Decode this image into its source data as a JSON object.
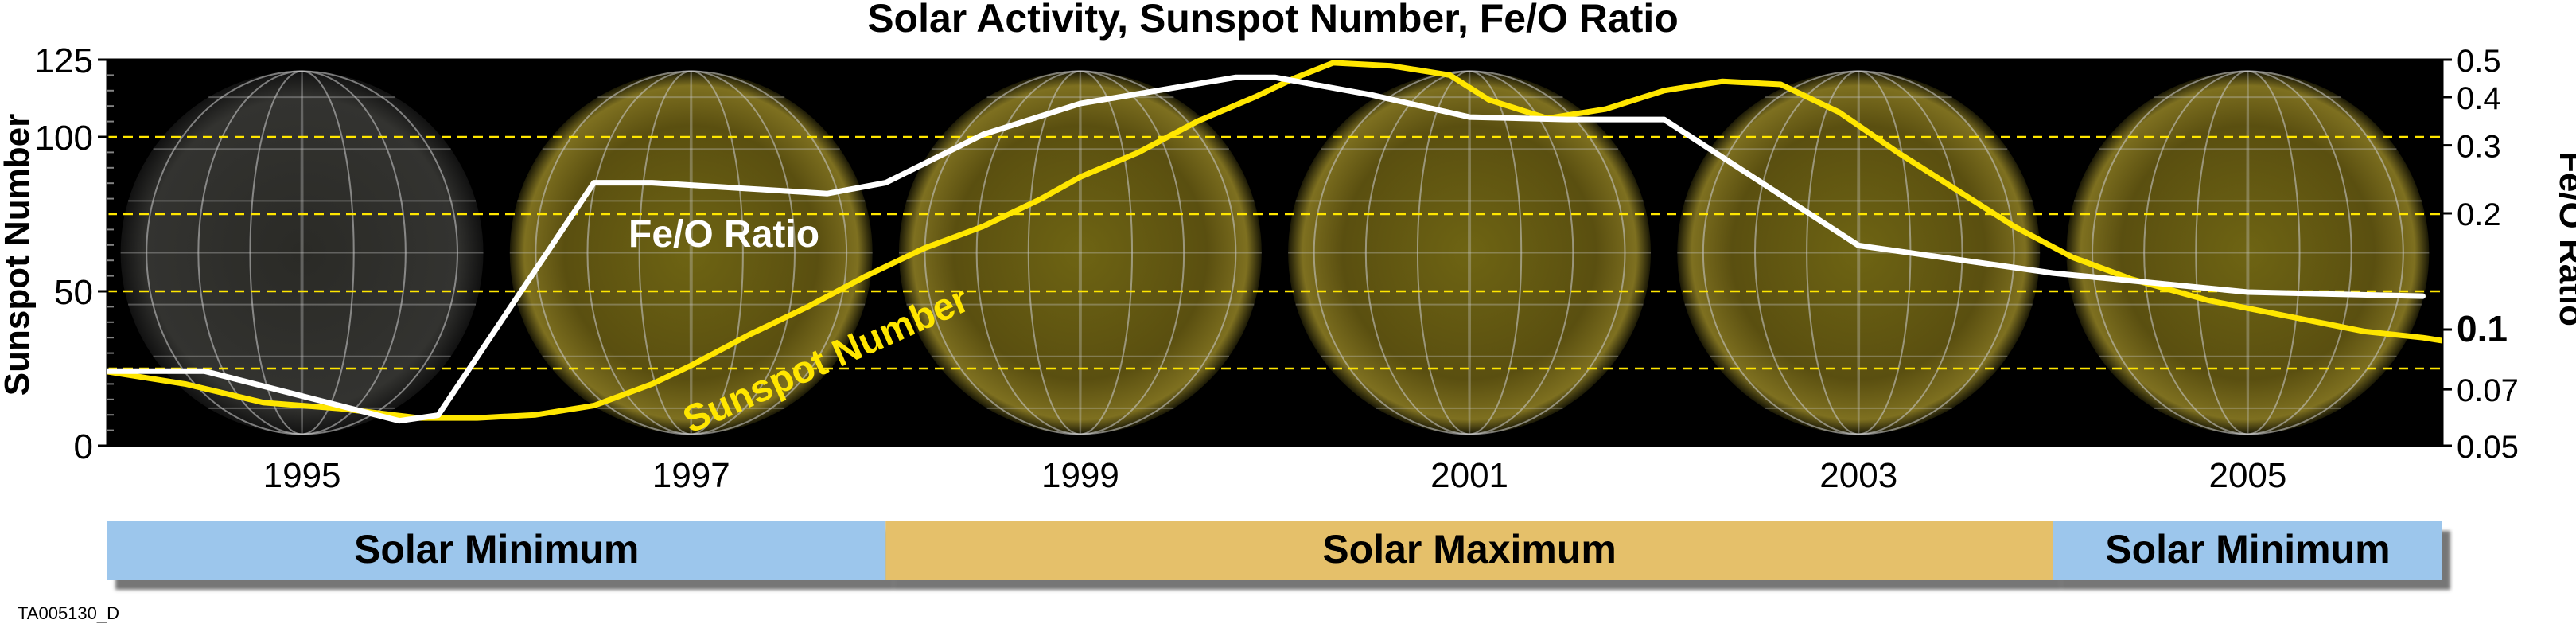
{
  "chart_data": {
    "type": "line",
    "title": "Solar Activity, Sunspot Number, Fe/O Ratio",
    "ylabel": "Sunspot Number",
    "y2label": "Fe/O Ratio",
    "ylim": [
      0,
      125
    ],
    "yticks": [
      0,
      50,
      100,
      125
    ],
    "y2lim": [
      0.05,
      0.5
    ],
    "y2scale": "log",
    "y2ticks": [
      0.05,
      0.07,
      0.1,
      0.2,
      0.3,
      0.4,
      0.5
    ],
    "y2tick_labels": [
      "0.05",
      "0.07",
      "0.1",
      "0.2",
      "0.3",
      "0.4",
      "0.5"
    ],
    "xlim": [
      1994,
      2006
    ],
    "xticks": [
      1995,
      1997,
      1999,
      2001,
      2003,
      2005
    ],
    "grid_y": [
      25,
      50,
      75,
      100
    ],
    "series": [
      {
        "name": "Sunspot Number",
        "label": "Sunspot Number",
        "axis": "left",
        "color": "#ffe600",
        "x": [
          1994.0,
          1994.4,
          1994.8,
          1995.2,
          1995.6,
          1995.9,
          1996.2,
          1996.5,
          1996.8,
          1997.0,
          1997.3,
          1997.6,
          1997.9,
          1998.2,
          1998.5,
          1998.8,
          1999.0,
          1999.3,
          1999.6,
          1999.9,
          2000.1,
          2000.3,
          2000.6,
          2000.9,
          2001.1,
          2001.4,
          2001.7,
          2002.0,
          2002.3,
          2002.6,
          2002.9,
          2003.2,
          2003.5,
          2003.8,
          2004.1,
          2004.4,
          2004.8,
          2005.2,
          2005.6,
          2005.9,
          2006.0
        ],
        "y": [
          24,
          20,
          14,
          12,
          9,
          9,
          10,
          13,
          20,
          26,
          36,
          45,
          55,
          64,
          71,
          80,
          87,
          95,
          105,
          113,
          119,
          124,
          123,
          120,
          112,
          106,
          109,
          115,
          118,
          117,
          108,
          95,
          83,
          71,
          61,
          54,
          47,
          42,
          37,
          35,
          34
        ]
      },
      {
        "name": "Fe/O Ratio",
        "label": "Fe/O Ratio",
        "axis": "right",
        "color": "#ffffff",
        "x": [
          1994.0,
          1994.5,
          1995.5,
          1995.7,
          1996.5,
          1996.8,
          1997.7,
          1998.0,
          1998.5,
          1999.0,
          1999.8,
          2000.0,
          2000.5,
          2001.0,
          2001.5,
          2002.0,
          2003.0,
          2004.0,
          2005.0,
          2005.9
        ],
        "y": [
          0.078,
          0.078,
          0.058,
          0.06,
          0.24,
          0.24,
          0.225,
          0.24,
          0.32,
          0.385,
          0.45,
          0.45,
          0.405,
          0.355,
          0.35,
          0.35,
          0.165,
          0.14,
          0.125,
          0.122
        ]
      }
    ],
    "annotations": [
      "Fe/O Ratio",
      "Sunspot Number"
    ],
    "phases": [
      {
        "label": "Solar Minimum",
        "start": 1994.0,
        "end": 1998.0,
        "color": "#9cc6ec"
      },
      {
        "label": "Solar Maximum",
        "start": 1998.0,
        "end": 2004.0,
        "color": "#e5c06b"
      },
      {
        "label": "Solar Minimum",
        "start": 2004.0,
        "end": 2006.0,
        "color": "#9cc6ec"
      }
    ],
    "background": "solar disk images",
    "caption": "TA005130_D"
  }
}
